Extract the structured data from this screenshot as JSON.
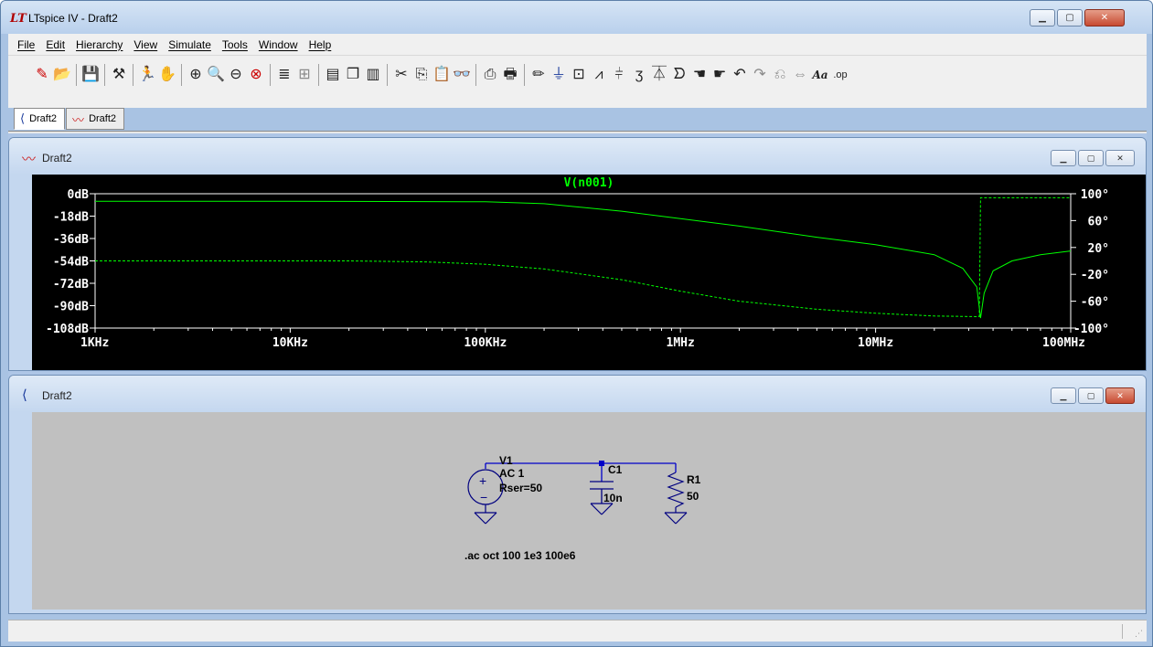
{
  "app": {
    "logo": "LT",
    "title": "LTspice IV - Draft2"
  },
  "menu": [
    "File",
    "Edit",
    "Hierarchy",
    "View",
    "Simulate",
    "Tools",
    "Window",
    "Help"
  ],
  "toolbar": {
    "groups": [
      [
        "new-schematic-icon",
        "open-icon"
      ],
      [
        "save-icon"
      ],
      [
        "control-panel-icon"
      ],
      [
        "run-icon",
        "halt-icon"
      ],
      [
        "zoom-in-icon",
        "zoom-area-icon",
        "zoom-out-icon",
        "zoom-cancel-icon"
      ],
      [
        "autorange-icon",
        "grid-icon"
      ],
      [
        "tile-horizontal-icon",
        "cascade-icon",
        "tile-vertical-icon"
      ],
      [
        "cut-icon",
        "copy-icon",
        "paste-icon",
        "find-icon"
      ],
      [
        "print-setup-icon",
        "print-icon"
      ],
      [
        "wire-icon",
        "ground-icon",
        "label-icon",
        "resistor-icon",
        "capacitor-icon",
        "inductor-icon",
        "diode-icon",
        "component-icon",
        "move-icon",
        "drag-icon",
        "undo-icon",
        "redo-icon",
        "rotate-icon",
        "mirror-icon",
        "text-icon",
        "spice-directive-icon"
      ]
    ],
    "text_label": "Aa",
    "op_label": ".op"
  },
  "tabs": [
    {
      "label": "Draft2",
      "kind": "schematic",
      "active": true
    },
    {
      "label": "Draft2",
      "kind": "plot",
      "active": false
    }
  ],
  "plot_window": {
    "title": "Draft2",
    "trace_name": "V(n001)",
    "colors": {
      "trace": "#00ff00",
      "background": "#000000",
      "axis": "#ffffff"
    }
  },
  "chart_data": {
    "type": "line",
    "title": "V(n001)",
    "x_scale": "log",
    "xlim": [
      1000,
      100000000
    ],
    "x_ticks": [
      "1KHz",
      "10KHz",
      "100KHz",
      "1MHz",
      "10MHz",
      "100MHz"
    ],
    "y_left_ticks": [
      "0dB",
      "-18dB",
      "-36dB",
      "-54dB",
      "-72dB",
      "-90dB",
      "-108dB"
    ],
    "y_left_lim": [
      -108,
      0
    ],
    "y_right_ticks": [
      "100°",
      "60°",
      "20°",
      "-20°",
      "-60°",
      "-100°"
    ],
    "y_right_lim": [
      -100,
      100
    ],
    "series": [
      {
        "name": "V(n001)",
        "style": "solid",
        "axis": "magnitude",
        "x": [
          1000,
          10000,
          100000,
          200000,
          500000,
          1000000,
          2000000,
          5000000,
          10000000,
          20000000,
          28000000,
          33000000,
          34500000,
          36000000,
          40000000,
          50000000,
          70000000,
          100000000
        ],
        "y": [
          -6,
          -6,
          -6.5,
          -8,
          -14,
          -20,
          -26,
          -35,
          -41,
          -49,
          -60,
          -75,
          -100,
          -80,
          -62,
          -54,
          -49,
          -46
        ]
      },
      {
        "name": "V(n001)",
        "style": "dashed",
        "axis": "phase",
        "x": [
          1000,
          10000,
          20000,
          50000,
          100000,
          200000,
          500000,
          1000000,
          2000000,
          5000000,
          10000000,
          20000000,
          34000000,
          34500000,
          100000000
        ],
        "y": [
          0,
          0,
          0,
          -1.5,
          -5,
          -12,
          -28,
          -45,
          -60,
          -72,
          -78,
          -82,
          -83,
          94,
          94
        ]
      }
    ]
  },
  "schematic_window": {
    "title": "Draft2",
    "source": {
      "name": "V1",
      "value": "AC 1",
      "param": "Rser=50",
      "plus": "+",
      "minus": "−"
    },
    "capacitor": {
      "name": "C1",
      "value": "10n"
    },
    "resistor": {
      "name": "R1",
      "value": "50"
    },
    "directive": ".ac oct 100 1e3 100e6",
    "colors": {
      "wire": "#0000c8",
      "component": "#000080",
      "background": "#c0c0c0"
    }
  }
}
